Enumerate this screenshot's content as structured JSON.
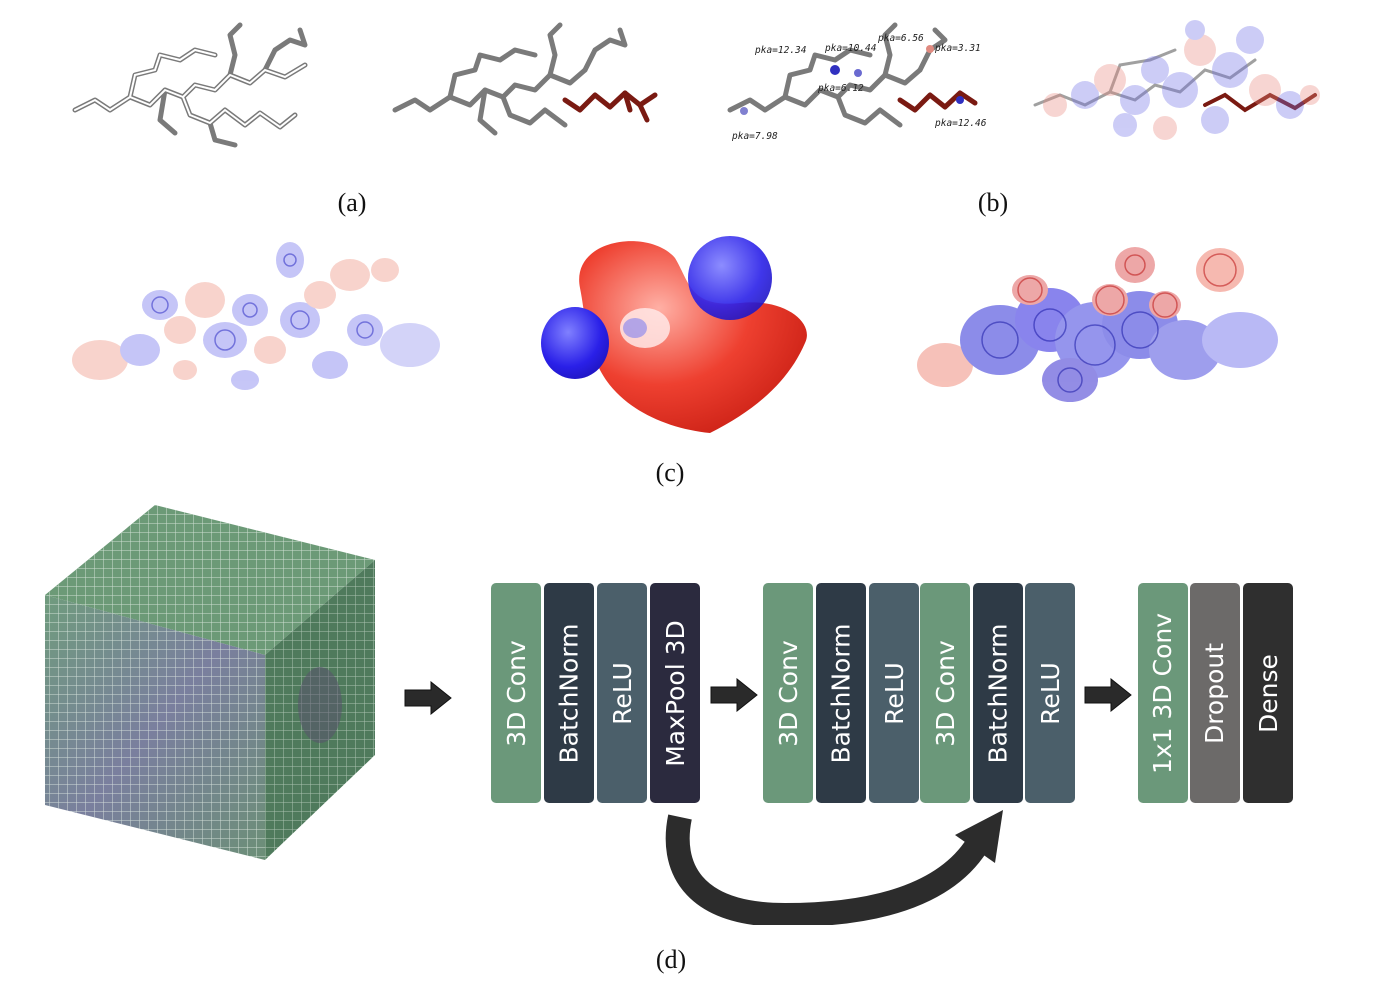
{
  "captions": {
    "a": "(a)",
    "b": "(b)",
    "c": "(c)",
    "d": "(d)"
  },
  "pka_labels": [
    "pka=12.34",
    "pka=10.44",
    "pka=6.56",
    "pka=3.31",
    "pka=6.12",
    "pka=7.98",
    "pka=12.46"
  ],
  "network": {
    "group1": [
      "3D Conv",
      "BatchNorm",
      "ReLU",
      "MaxPool 3D"
    ],
    "group2": [
      "3D Conv",
      "BatchNorm",
      "ReLU",
      "3D Conv",
      "BatchNorm",
      "ReLU"
    ],
    "group3": [
      "1x1 3D Conv",
      "Dropout",
      "Dense"
    ]
  },
  "colors": {
    "conv": "#6b987a",
    "batchnorm": "#2e3a46",
    "relu": "#4b5f6a",
    "maxpool": "#2b2a3e",
    "dropout": "#6c6a69",
    "dense": "#2f2f2f",
    "arrow": "#2a2a2a",
    "charge_positive": "#e02a1e",
    "charge_negative": "#2626e0",
    "voxel_grid": "#5d8a6c"
  }
}
